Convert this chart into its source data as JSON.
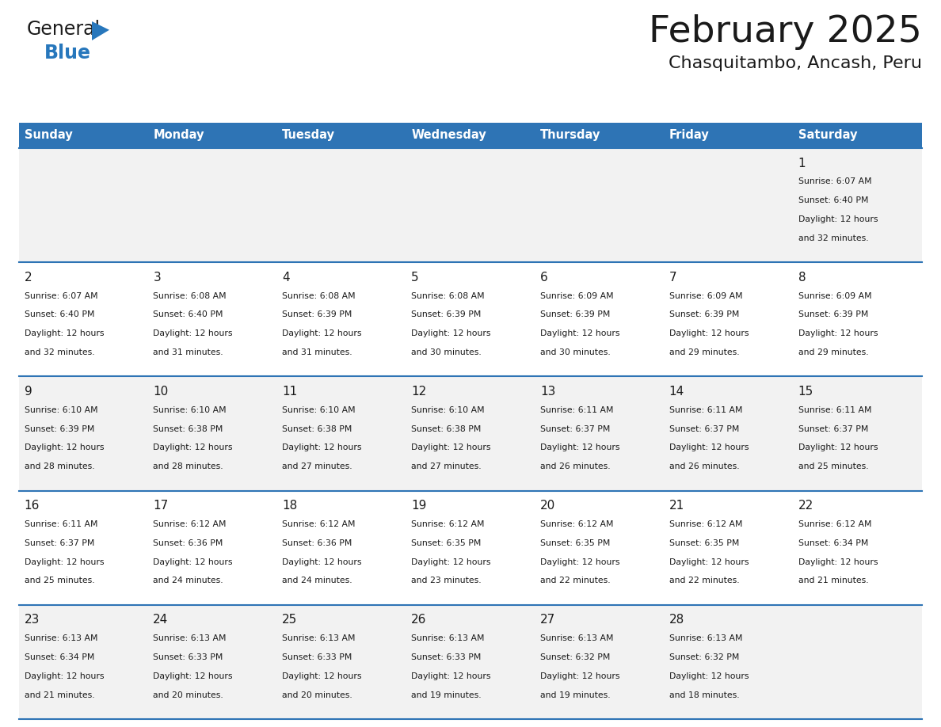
{
  "title": "February 2025",
  "subtitle": "Chasquitambo, Ancash, Peru",
  "header_color": "#2e74b5",
  "header_text_color": "#ffffff",
  "cell_bg_even": "#f2f2f2",
  "cell_bg_odd": "#ffffff",
  "border_color": "#2e74b5",
  "text_color": "#1a1a1a",
  "day_headers": [
    "Sunday",
    "Monday",
    "Tuesday",
    "Wednesday",
    "Thursday",
    "Friday",
    "Saturday"
  ],
  "days_data": [
    {
      "day": 1,
      "col": 6,
      "row": 0,
      "sunrise": "6:07 AM",
      "sunset": "6:40 PM",
      "daylight_hours": 12,
      "daylight_minutes": 32
    },
    {
      "day": 2,
      "col": 0,
      "row": 1,
      "sunrise": "6:07 AM",
      "sunset": "6:40 PM",
      "daylight_hours": 12,
      "daylight_minutes": 32
    },
    {
      "day": 3,
      "col": 1,
      "row": 1,
      "sunrise": "6:08 AM",
      "sunset": "6:40 PM",
      "daylight_hours": 12,
      "daylight_minutes": 31
    },
    {
      "day": 4,
      "col": 2,
      "row": 1,
      "sunrise": "6:08 AM",
      "sunset": "6:39 PM",
      "daylight_hours": 12,
      "daylight_minutes": 31
    },
    {
      "day": 5,
      "col": 3,
      "row": 1,
      "sunrise": "6:08 AM",
      "sunset": "6:39 PM",
      "daylight_hours": 12,
      "daylight_minutes": 30
    },
    {
      "day": 6,
      "col": 4,
      "row": 1,
      "sunrise": "6:09 AM",
      "sunset": "6:39 PM",
      "daylight_hours": 12,
      "daylight_minutes": 30
    },
    {
      "day": 7,
      "col": 5,
      "row": 1,
      "sunrise": "6:09 AM",
      "sunset": "6:39 PM",
      "daylight_hours": 12,
      "daylight_minutes": 29
    },
    {
      "day": 8,
      "col": 6,
      "row": 1,
      "sunrise": "6:09 AM",
      "sunset": "6:39 PM",
      "daylight_hours": 12,
      "daylight_minutes": 29
    },
    {
      "day": 9,
      "col": 0,
      "row": 2,
      "sunrise": "6:10 AM",
      "sunset": "6:39 PM",
      "daylight_hours": 12,
      "daylight_minutes": 28
    },
    {
      "day": 10,
      "col": 1,
      "row": 2,
      "sunrise": "6:10 AM",
      "sunset": "6:38 PM",
      "daylight_hours": 12,
      "daylight_minutes": 28
    },
    {
      "day": 11,
      "col": 2,
      "row": 2,
      "sunrise": "6:10 AM",
      "sunset": "6:38 PM",
      "daylight_hours": 12,
      "daylight_minutes": 27
    },
    {
      "day": 12,
      "col": 3,
      "row": 2,
      "sunrise": "6:10 AM",
      "sunset": "6:38 PM",
      "daylight_hours": 12,
      "daylight_minutes": 27
    },
    {
      "day": 13,
      "col": 4,
      "row": 2,
      "sunrise": "6:11 AM",
      "sunset": "6:37 PM",
      "daylight_hours": 12,
      "daylight_minutes": 26
    },
    {
      "day": 14,
      "col": 5,
      "row": 2,
      "sunrise": "6:11 AM",
      "sunset": "6:37 PM",
      "daylight_hours": 12,
      "daylight_minutes": 26
    },
    {
      "day": 15,
      "col": 6,
      "row": 2,
      "sunrise": "6:11 AM",
      "sunset": "6:37 PM",
      "daylight_hours": 12,
      "daylight_minutes": 25
    },
    {
      "day": 16,
      "col": 0,
      "row": 3,
      "sunrise": "6:11 AM",
      "sunset": "6:37 PM",
      "daylight_hours": 12,
      "daylight_minutes": 25
    },
    {
      "day": 17,
      "col": 1,
      "row": 3,
      "sunrise": "6:12 AM",
      "sunset": "6:36 PM",
      "daylight_hours": 12,
      "daylight_minutes": 24
    },
    {
      "day": 18,
      "col": 2,
      "row": 3,
      "sunrise": "6:12 AM",
      "sunset": "6:36 PM",
      "daylight_hours": 12,
      "daylight_minutes": 24
    },
    {
      "day": 19,
      "col": 3,
      "row": 3,
      "sunrise": "6:12 AM",
      "sunset": "6:35 PM",
      "daylight_hours": 12,
      "daylight_minutes": 23
    },
    {
      "day": 20,
      "col": 4,
      "row": 3,
      "sunrise": "6:12 AM",
      "sunset": "6:35 PM",
      "daylight_hours": 12,
      "daylight_minutes": 22
    },
    {
      "day": 21,
      "col": 5,
      "row": 3,
      "sunrise": "6:12 AM",
      "sunset": "6:35 PM",
      "daylight_hours": 12,
      "daylight_minutes": 22
    },
    {
      "day": 22,
      "col": 6,
      "row": 3,
      "sunrise": "6:12 AM",
      "sunset": "6:34 PM",
      "daylight_hours": 12,
      "daylight_minutes": 21
    },
    {
      "day": 23,
      "col": 0,
      "row": 4,
      "sunrise": "6:13 AM",
      "sunset": "6:34 PM",
      "daylight_hours": 12,
      "daylight_minutes": 21
    },
    {
      "day": 24,
      "col": 1,
      "row": 4,
      "sunrise": "6:13 AM",
      "sunset": "6:33 PM",
      "daylight_hours": 12,
      "daylight_minutes": 20
    },
    {
      "day": 25,
      "col": 2,
      "row": 4,
      "sunrise": "6:13 AM",
      "sunset": "6:33 PM",
      "daylight_hours": 12,
      "daylight_minutes": 20
    },
    {
      "day": 26,
      "col": 3,
      "row": 4,
      "sunrise": "6:13 AM",
      "sunset": "6:33 PM",
      "daylight_hours": 12,
      "daylight_minutes": 19
    },
    {
      "day": 27,
      "col": 4,
      "row": 4,
      "sunrise": "6:13 AM",
      "sunset": "6:32 PM",
      "daylight_hours": 12,
      "daylight_minutes": 19
    },
    {
      "day": 28,
      "col": 5,
      "row": 4,
      "sunrise": "6:13 AM",
      "sunset": "6:32 PM",
      "daylight_hours": 12,
      "daylight_minutes": 18
    }
  ],
  "num_rows": 5,
  "num_cols": 7,
  "logo_general_color": "#1a1a1a",
  "logo_blue_color": "#2777bc",
  "logo_triangle_color": "#2777bc",
  "fig_width": 11.88,
  "fig_height": 9.18,
  "dpi": 100
}
